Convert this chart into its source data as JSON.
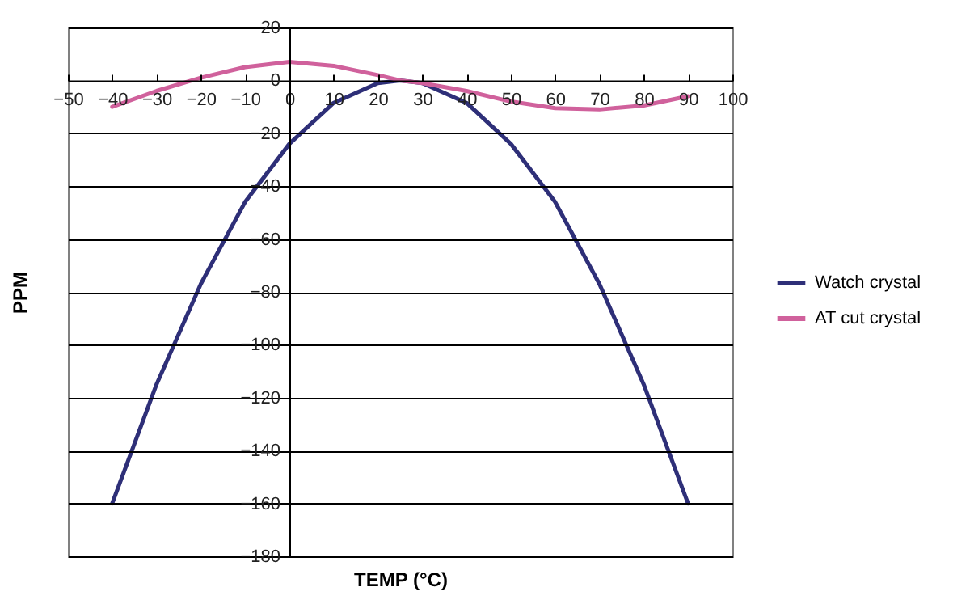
{
  "chart_data": {
    "type": "line",
    "xlabel": "TEMP (°C)",
    "ylabel": "PPM",
    "xlim": [
      -50,
      100
    ],
    "xticks": [
      -50,
      -40,
      -30,
      -20,
      -10,
      0,
      10,
      20,
      30,
      40,
      50,
      60,
      70,
      80,
      90,
      100
    ],
    "ylim": [
      -180,
      20
    ],
    "yticks": [
      -180,
      -160,
      -140,
      -120,
      -100,
      -80,
      -60,
      -40,
      -20,
      0,
      20
    ],
    "grid": "y",
    "legend": "right",
    "marker": "none",
    "line_style": "solid",
    "series": [
      {
        "name": "Watch crystal",
        "color": "#2e2f78",
        "x": [
          -40,
          -30,
          -20,
          -10,
          0,
          10,
          20,
          25,
          30,
          40,
          50,
          60,
          70,
          80,
          90
        ],
        "values": [
          -160,
          -115,
          -77,
          -46,
          -24,
          -8.5,
          -1,
          0,
          -1,
          -8.5,
          -24,
          -46,
          -77,
          -115,
          -160
        ]
      },
      {
        "name": "AT cut crystal",
        "color": "#d0619c",
        "x": [
          -40,
          -30,
          -20,
          -10,
          0,
          10,
          20,
          25,
          30,
          40,
          50,
          60,
          70,
          80,
          90
        ],
        "values": [
          -10,
          -4,
          1,
          5,
          7,
          5.5,
          2,
          0,
          -1,
          -4,
          -8,
          -10.5,
          -11,
          -9.5,
          -6
        ]
      }
    ]
  }
}
